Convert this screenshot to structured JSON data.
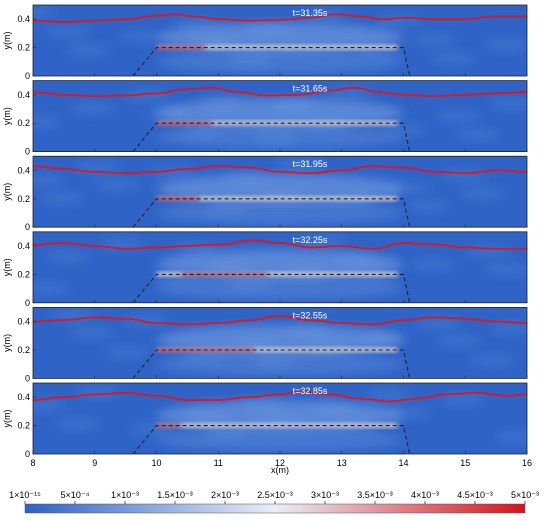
{
  "chart_data": {
    "type": "heatmap",
    "xlabel": "x(m)",
    "ylabel": "y(m)",
    "xlim": [
      8,
      16
    ],
    "ylim": [
      0,
      0.5
    ],
    "xticks": [
      "8",
      "9",
      "10",
      "11",
      "12",
      "13",
      "14",
      "15",
      "16"
    ],
    "yticks": [
      "0",
      "0.2",
      "0.4"
    ],
    "panels": [
      {
        "time_label": "t=31.35s",
        "free_surface": {
          "x": [
            8,
            8.5,
            9,
            9.5,
            10,
            10.3,
            10.6,
            11,
            11.5,
            12,
            12.5,
            12.9,
            13.3,
            13.7,
            14,
            14.5,
            15,
            15.5,
            16
          ],
          "y": [
            0.39,
            0.38,
            0.39,
            0.4,
            0.425,
            0.435,
            0.42,
            0.4,
            0.39,
            0.395,
            0.41,
            0.435,
            0.42,
            0.4,
            0.41,
            0.4,
            0.4,
            0.42,
            0.42
          ]
        }
      },
      {
        "time_label": "t=31.65s",
        "free_surface": {
          "x": [
            8,
            8.5,
            9,
            9.5,
            10,
            10.5,
            10.9,
            11.3,
            11.8,
            12.3,
            12.8,
            13.2,
            13.6,
            14,
            14.5,
            15,
            15.5,
            16
          ],
          "y": [
            0.42,
            0.4,
            0.39,
            0.395,
            0.41,
            0.44,
            0.45,
            0.42,
            0.395,
            0.4,
            0.43,
            0.45,
            0.42,
            0.4,
            0.39,
            0.4,
            0.41,
            0.42
          ]
        }
      },
      {
        "time_label": "t=31.95s",
        "free_surface": {
          "x": [
            8,
            8.5,
            9,
            9.5,
            10,
            10.5,
            11,
            11.5,
            12,
            12.5,
            13,
            13.5,
            14,
            14.5,
            15,
            15.5,
            16
          ],
          "y": [
            0.43,
            0.41,
            0.39,
            0.38,
            0.39,
            0.41,
            0.43,
            0.42,
            0.39,
            0.38,
            0.4,
            0.43,
            0.42,
            0.39,
            0.38,
            0.4,
            0.39
          ]
        }
      },
      {
        "time_label": "t=32.25s",
        "free_surface": {
          "x": [
            8,
            8.5,
            9,
            9.5,
            10,
            10.5,
            11,
            11.6,
            12,
            12.5,
            13,
            13.5,
            14,
            14.5,
            15,
            15.5,
            16
          ],
          "y": [
            0.41,
            0.42,
            0.4,
            0.38,
            0.39,
            0.4,
            0.41,
            0.44,
            0.42,
            0.39,
            0.4,
            0.38,
            0.42,
            0.41,
            0.39,
            0.38,
            0.38
          ]
        }
      },
      {
        "time_label": "t=32.55s",
        "free_surface": {
          "x": [
            8,
            8.5,
            9,
            9.5,
            10,
            10.5,
            11,
            11.5,
            12,
            12.5,
            13,
            13.5,
            14,
            14.5,
            15,
            15.5,
            16
          ],
          "y": [
            0.4,
            0.41,
            0.43,
            0.42,
            0.39,
            0.38,
            0.39,
            0.41,
            0.44,
            0.41,
            0.39,
            0.38,
            0.41,
            0.43,
            0.42,
            0.4,
            0.39
          ]
        }
      },
      {
        "time_label": "t=32.85s",
        "free_surface": {
          "x": [
            8,
            8.5,
            9,
            9.5,
            10,
            10.5,
            11,
            11.5,
            12,
            12.3,
            12.8,
            13.3,
            13.8,
            14.2,
            14.7,
            15.2,
            15.7,
            16
          ],
          "y": [
            0.38,
            0.4,
            0.42,
            0.43,
            0.41,
            0.38,
            0.38,
            0.4,
            0.42,
            0.44,
            0.42,
            0.39,
            0.37,
            0.39,
            0.42,
            0.43,
            0.41,
            0.42
          ]
        }
      }
    ],
    "breakwater": {
      "x": [
        9.62,
        10.0,
        14.0,
        14.1
      ],
      "y": [
        0,
        0.2,
        0.2,
        0
      ]
    },
    "colorbar": {
      "tick_labels": [
        "1×10⁻¹⁵",
        "5×10⁻⁴",
        "1×10⁻³",
        "1.5×10⁻³",
        "2×10⁻³",
        "2.5×10⁻³",
        "3×10⁻³",
        "3.5×10⁻³",
        "4×10⁻³",
        "4.5×10⁻³",
        "5×10⁻³"
      ],
      "range": [
        0,
        0.005
      ],
      "colors": {
        "low": "#2d5fc8",
        "mid": "#e9eef6",
        "high": "#d4141c"
      }
    },
    "colors": {
      "background_field": "#2f63c6",
      "surface_line": "#e0161e",
      "breakwater_line": "#1a2230"
    }
  }
}
